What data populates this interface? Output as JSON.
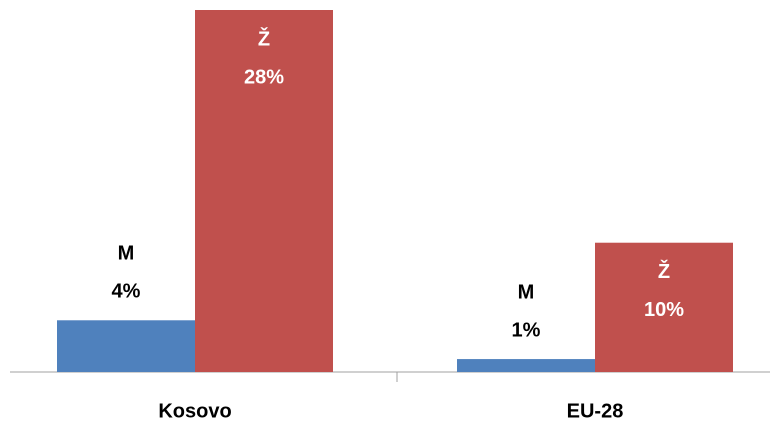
{
  "chart_data": {
    "type": "bar",
    "categories": [
      "Kosovo",
      "EU-28"
    ],
    "series": [
      {
        "name": "M",
        "color": "#4f81bd",
        "values": [
          4,
          1
        ],
        "value_labels": [
          "4%",
          "1%"
        ]
      },
      {
        "name": "Ž",
        "color": "#c0504d",
        "values": [
          28,
          10
        ],
        "value_labels": [
          "28%",
          "10%"
        ]
      }
    ],
    "ylim": [
      0,
      28
    ]
  }
}
